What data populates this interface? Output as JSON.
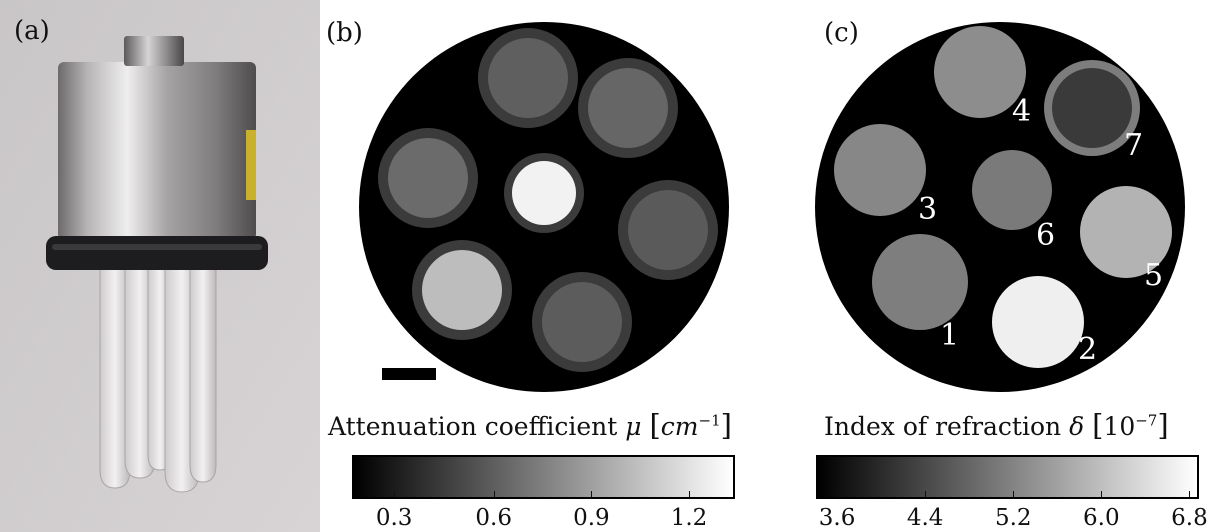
{
  "panels": {
    "a": {
      "label": "(a)"
    },
    "b": {
      "label": "(b)",
      "colorbar": {
        "title": "Attenuation coefficient",
        "symbol": "μ",
        "unit_base": "cm",
        "unit_exp": "−1",
        "ticks": [
          "0.3",
          "0.6",
          "0.9",
          "1.2"
        ],
        "gradient": [
          "#000000",
          "#ffffff"
        ]
      }
    },
    "c": {
      "label": "(c)",
      "colorbar": {
        "title": "Index of refraction",
        "symbol": "δ",
        "unit_base": "10",
        "unit_exp": "−7",
        "ticks": [
          "3.6",
          "4.4",
          "5.2",
          "6.0",
          "6.8"
        ],
        "gradient": [
          "#000000",
          "#ffffff"
        ]
      },
      "sample_numbers": [
        "1",
        "2",
        "3",
        "4",
        "5",
        "6",
        "7"
      ]
    }
  },
  "colors": {
    "background": "#ffffff",
    "phantom": "#000000",
    "tube_wall": "#3a3a3a"
  }
}
